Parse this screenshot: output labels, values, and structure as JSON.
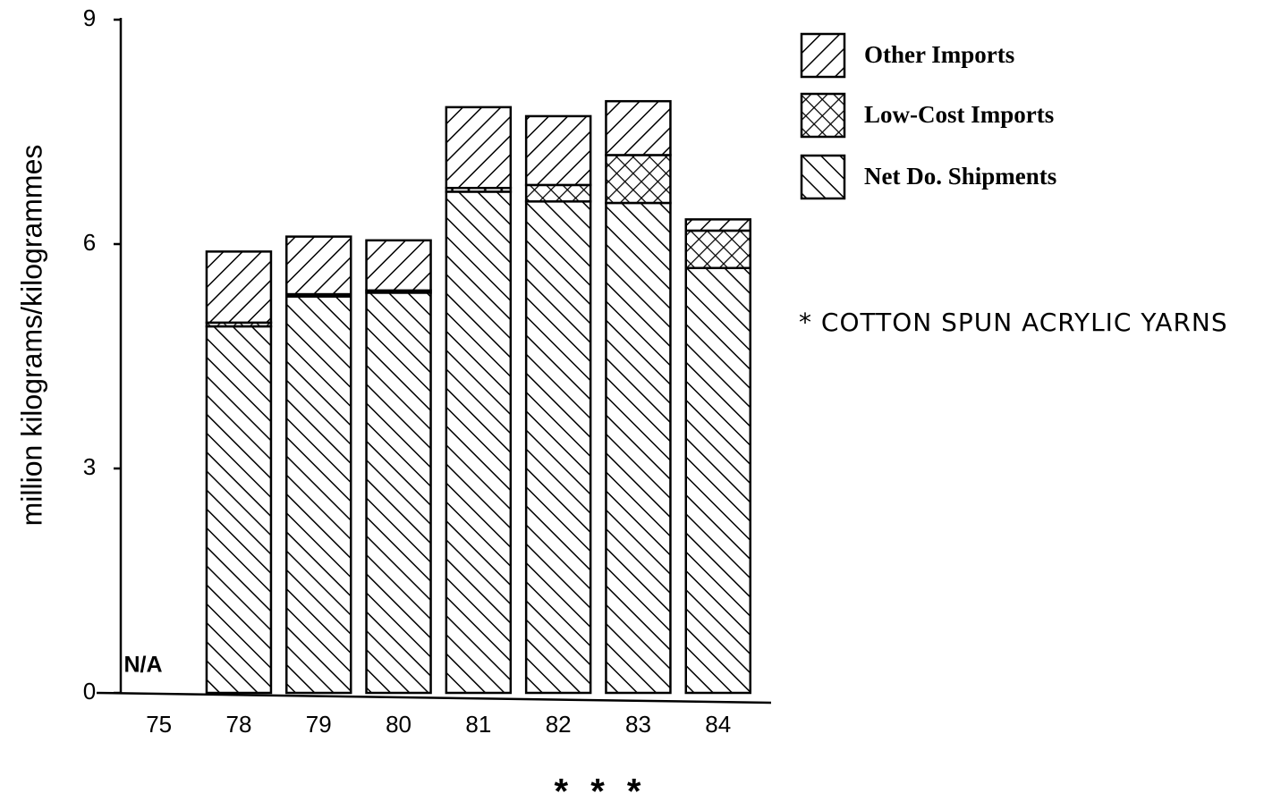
{
  "chart_data": {
    "type": "stacked-bar",
    "y_label": "million kilograms/kilogrammes",
    "categories": [
      "75",
      "78",
      "79",
      "80",
      "81",
      "82",
      "83",
      "84"
    ],
    "series": [
      {
        "name": "Other Imports",
        "color": "#000000",
        "pattern": "diagonal-up",
        "values": [
          null,
          0.95,
          0.77,
          0.67,
          1.08,
          0.92,
          0.72,
          0.15
        ]
      },
      {
        "name": "Low-Cost Imports",
        "color": "#000000",
        "pattern": "crosshatch",
        "values": [
          null,
          0.05,
          0.03,
          0.03,
          0.05,
          0.22,
          0.64,
          0.5
        ]
      },
      {
        "name": "Net Do. Shipments",
        "color": "#000000",
        "pattern": "diagonal-down",
        "values": [
          null,
          4.9,
          5.3,
          5.35,
          6.7,
          6.57,
          6.55,
          5.68
        ]
      }
    ],
    "ylim": [
      0,
      9
    ],
    "yticks": [
      0,
      3,
      6,
      9
    ],
    "annotations": [
      "N/A",
      "* COTTON SPUN ACRYLIC YARNS",
      "* * *"
    ]
  }
}
